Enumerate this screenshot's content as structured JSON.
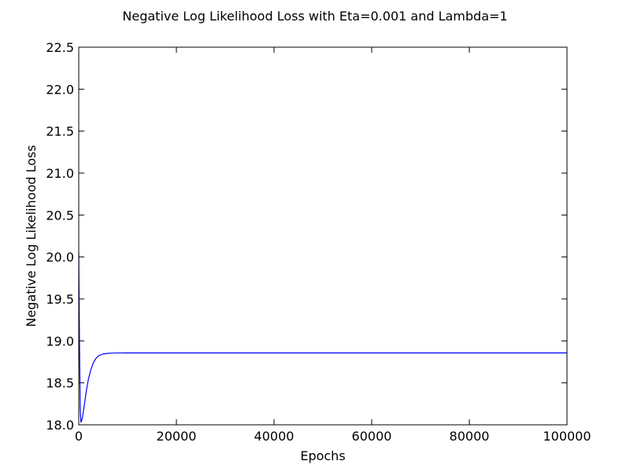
{
  "chart_data": {
    "type": "line",
    "title": "Negative Log Likelihood Loss with Eta=0.001 and Lambda=1",
    "xlabel": "Epochs",
    "ylabel": "Negative Log Likelihood Loss",
    "xlim": [
      0,
      100000
    ],
    "ylim": [
      18.0,
      22.5
    ],
    "x_ticks": [
      0,
      20000,
      40000,
      60000,
      80000,
      100000
    ],
    "x_tick_labels": [
      "0",
      "20000",
      "40000",
      "60000",
      "80000",
      "100000"
    ],
    "y_ticks": [
      18.0,
      18.5,
      19.0,
      19.5,
      20.0,
      20.5,
      21.0,
      21.5,
      22.0,
      22.5
    ],
    "y_tick_labels": [
      "18.0",
      "18.5",
      "19.0",
      "19.5",
      "20.0",
      "20.5",
      "21.0",
      "21.5",
      "22.0",
      "22.5"
    ],
    "grid": false,
    "legend": "none",
    "series": [
      {
        "color": "#0000ff",
        "x": [
          0,
          150,
          300,
          450,
          600,
          800,
          1000,
          1300,
          1600,
          2000,
          2500,
          3000,
          3500,
          4000,
          5000,
          6000,
          7000,
          8000,
          10000,
          15000,
          20000,
          30000,
          40000,
          50000,
          60000,
          70000,
          80000,
          90000,
          100000
        ],
        "y": [
          20.05,
          19.0,
          18.2,
          18.03,
          18.05,
          18.1,
          18.18,
          18.3,
          18.42,
          18.55,
          18.66,
          18.74,
          18.79,
          18.82,
          18.845,
          18.852,
          18.855,
          18.856,
          18.857,
          18.857,
          18.857,
          18.857,
          18.857,
          18.857,
          18.857,
          18.857,
          18.857,
          18.857,
          18.857
        ]
      }
    ]
  }
}
